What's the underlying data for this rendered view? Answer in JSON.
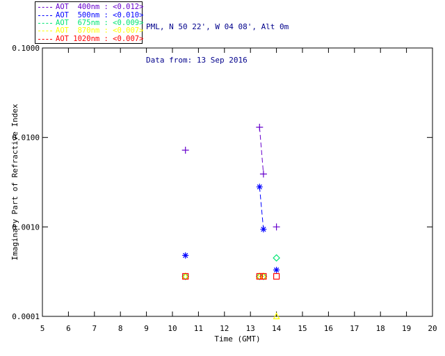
{
  "header": {
    "site_line": "PML, N 50 22', W 04 08', Alt 0m",
    "date_line": "Data from: 13 Sep 2016",
    "text_color": "#00008B"
  },
  "legend": {
    "items": [
      {
        "label": "AOT  400nm : <0.012>",
        "color": "#6600CC"
      },
      {
        "label": "AOT  500nm : <0.010>",
        "color": "#0000FF"
      },
      {
        "label": "AOT  675nm : <0.009>",
        "color": "#00E673"
      },
      {
        "label": "AOT  870nm : <0.007>",
        "color": "#FFFF00"
      },
      {
        "label": "AOT 1020nm : <0.007>",
        "color": "#FF0000"
      }
    ]
  },
  "chart_data": {
    "type": "scatter",
    "title": "",
    "xlabel": "Time (GMT)",
    "ylabel": "Imaginary Part of Refractive Index",
    "xlim": [
      5,
      20
    ],
    "ylim": [
      0.0001,
      0.1
    ],
    "y_scale": "log",
    "grid": false,
    "x_ticks": [
      5,
      6,
      7,
      8,
      9,
      10,
      11,
      12,
      13,
      14,
      15,
      16,
      17,
      18,
      19,
      20
    ],
    "x_tick_labels": [
      "5",
      "6",
      "7",
      "8",
      "9",
      "10",
      "11",
      "12",
      "13",
      "14",
      "15",
      "16",
      "17",
      "18",
      "19",
      "20"
    ],
    "y_ticks": [
      0.1,
      0.01,
      0.001,
      0.0001
    ],
    "y_tick_labels": [
      "0.1000",
      "0.0100",
      "0.0010",
      "0.0001"
    ],
    "line_style": "dashed",
    "axis_color": "#000000",
    "series": [
      {
        "name": "AOT 400nm",
        "color": "#6600CC",
        "marker": "plus",
        "x": [
          10.5,
          13.35,
          13.5,
          14.0
        ],
        "y": [
          0.0072,
          0.013,
          0.0039,
          0.001
        ],
        "connect": [
          [
            1,
            2
          ]
        ]
      },
      {
        "name": "AOT 500nm",
        "color": "#0000FF",
        "marker": "asterisk",
        "x": [
          10.5,
          13.35,
          13.5,
          14.0
        ],
        "y": [
          0.00048,
          0.0028,
          0.00094,
          0.00033
        ],
        "connect": [
          [
            1,
            2
          ]
        ]
      },
      {
        "name": "AOT 675nm",
        "color": "#00E673",
        "marker": "diamond",
        "x": [
          10.5,
          13.35,
          13.5,
          14.0
        ],
        "y": [
          0.00028,
          0.00028,
          0.00028,
          0.00045
        ],
        "connect": [
          [
            1,
            2
          ]
        ]
      },
      {
        "name": "AOT 870nm",
        "color": "#FFFF00",
        "marker": "triangle",
        "x": [
          10.5,
          13.35,
          13.5,
          14.0
        ],
        "y": [
          0.00028,
          0.00028,
          0.00028,
          0.0001
        ],
        "connect": [
          [
            1,
            2
          ]
        ]
      },
      {
        "name": "AOT 1020nm",
        "color": "#FF0000",
        "marker": "square",
        "x": [
          10.5,
          13.35,
          13.5,
          14.0
        ],
        "y": [
          0.00028,
          0.00028,
          0.00028,
          0.00028
        ],
        "connect": [
          [
            1,
            2
          ]
        ]
      }
    ]
  }
}
